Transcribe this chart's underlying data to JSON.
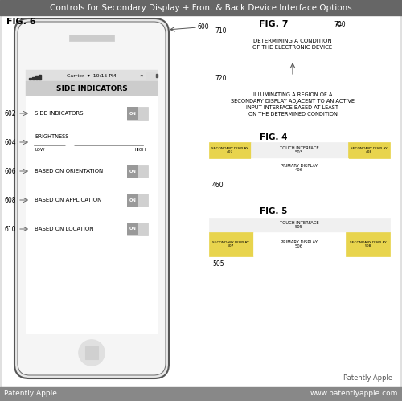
{
  "title": "Controls for Secondary Display + Front & Back Device Interface Options",
  "title_bg": "#666666",
  "title_color": "#ffffff",
  "bg_color": "#e0e0e0",
  "footer_bg": "#888888",
  "footer_left": "Patently Apple",
  "footer_right": "www.patentlyapple.com",
  "fig6_label": "FIG. 6",
  "fig7_label": "FIG. 7",
  "fig4_label": "FIG. 4",
  "fig5_label": "FIG. 5",
  "label_600": "600",
  "label_602": "602",
  "label_604": "604",
  "label_606": "606",
  "label_608": "608",
  "label_610": "610",
  "label_710": "710",
  "label_720": "720",
  "label_700": "700",
  "phone_screen_title": "SIDE INDICATORS",
  "row1_text": "SIDE INDICATORS",
  "row2_text": "BRIGHTNESS",
  "row2_low": "LOW",
  "row2_high": "HIGH",
  "row3_text": "BASED ON ORIENTATION",
  "row4_text": "BASED ON APPLICATION",
  "row5_text": "BASED ON LOCATION",
  "fig7_box1": "DETERMINING A CONDITION\nOF THE ELECTRONIC DEVICE",
  "fig7_box2": "ILLUMINATING A REGION OF A\nSECONDARY DISPLAY ADJACENT TO AN ACTIVE\nINPUT INTERFACE BASED AT LEAST\nON THE DETERMINED CONDITION",
  "yellow_color": "#e8d44d",
  "white": "#ffffff",
  "black": "#000000",
  "content_bg": "#f0f0f0"
}
